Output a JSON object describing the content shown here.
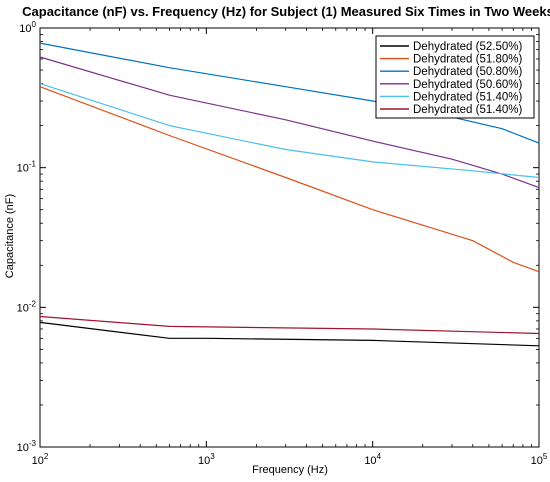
{
  "chart_data": {
    "type": "line",
    "title": "Capacitance (nF) vs. Frequency (Hz) for Subject (1) Measured Six Times in Two Weeks",
    "xlabel": "Frequency (Hz)",
    "ylabel": "Capacitance (nF)",
    "x_scale": "log",
    "y_scale": "log",
    "xlim": [
      100,
      100000
    ],
    "ylim": [
      0.001,
      1
    ],
    "x_ticks": [
      {
        "value": 100,
        "base": "10",
        "exp": "2"
      },
      {
        "value": 1000,
        "base": "10",
        "exp": "3"
      },
      {
        "value": 10000,
        "base": "10",
        "exp": "4"
      },
      {
        "value": 100000,
        "base": "10",
        "exp": "5"
      }
    ],
    "y_ticks": [
      {
        "value": 0.001,
        "base": "10",
        "exp": "-3"
      },
      {
        "value": 0.01,
        "base": "10",
        "exp": "-2"
      },
      {
        "value": 0.1,
        "base": "10",
        "exp": "-1"
      },
      {
        "value": 1,
        "base": "10",
        "exp": "0"
      }
    ],
    "grid": false,
    "legend_position": "top-right",
    "series": [
      {
        "name": "Dehydrated (52.50%)",
        "color": "#000000",
        "x": [
          100,
          600,
          1000,
          10000,
          100000
        ],
        "y": [
          0.0078,
          0.006,
          0.006,
          0.0058,
          0.0053
        ]
      },
      {
        "name": "Dehydrated (51.80%)",
        "color": "#d95319",
        "x": [
          100,
          600,
          3000,
          10000,
          40000,
          70000,
          100000
        ],
        "y": [
          0.38,
          0.17,
          0.085,
          0.05,
          0.03,
          0.021,
          0.018
        ]
      },
      {
        "name": "Dehydrated (50.80%)",
        "color": "#0072bd",
        "x": [
          100,
          600,
          3000,
          10000,
          30000,
          60000,
          100000
        ],
        "y": [
          0.78,
          0.52,
          0.38,
          0.3,
          0.23,
          0.19,
          0.15
        ]
      },
      {
        "name": "Dehydrated (50.60%)",
        "color": "#7e2f8e",
        "x": [
          100,
          600,
          3000,
          10000,
          30000,
          60000,
          100000
        ],
        "y": [
          0.62,
          0.33,
          0.22,
          0.155,
          0.115,
          0.09,
          0.072
        ]
      },
      {
        "name": "Dehydrated (51.40%)",
        "color": "#4dbeee",
        "x": [
          100,
          600,
          3000,
          10000,
          40000,
          100000
        ],
        "y": [
          0.4,
          0.2,
          0.135,
          0.11,
          0.095,
          0.085
        ]
      },
      {
        "name": "Dehydrated (51.40%)",
        "color": "#a2142f",
        "x": [
          100,
          600,
          10000,
          100000
        ],
        "y": [
          0.0086,
          0.0073,
          0.007,
          0.0065
        ]
      }
    ]
  }
}
